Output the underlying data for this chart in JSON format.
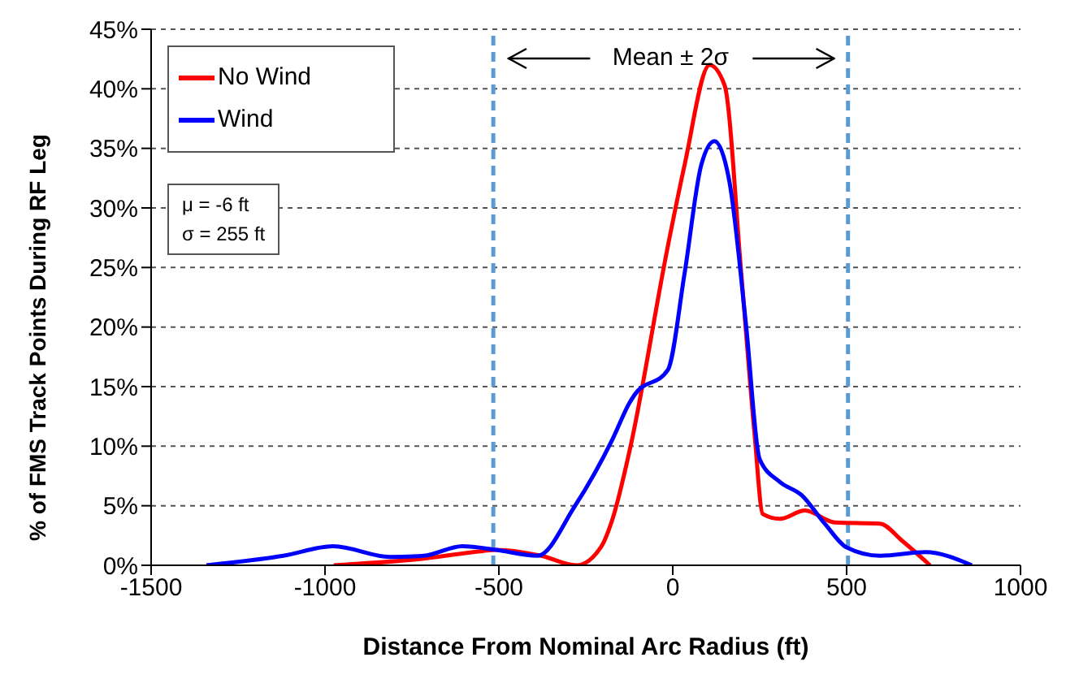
{
  "chart_data": {
    "type": "line",
    "xlabel": "Distance From Nominal Arc Radius (ft)",
    "ylabel": "% of FMS Track Points During RF Leg",
    "xlim": [
      -1500,
      1000
    ],
    "xticks": [
      -1500,
      -1000,
      -500,
      0,
      500,
      1000
    ],
    "ylim": [
      0,
      45
    ],
    "yticks": [
      {
        "value": 0,
        "label": "0%"
      },
      {
        "value": 5,
        "label": "5%"
      },
      {
        "value": 10,
        "label": "10%"
      },
      {
        "value": 15,
        "label": "15%"
      },
      {
        "value": 20,
        "label": "20%"
      },
      {
        "value": 25,
        "label": "25%"
      },
      {
        "value": 30,
        "label": "30%"
      },
      {
        "value": 35,
        "label": "35%"
      },
      {
        "value": 40,
        "label": "40%"
      },
      {
        "value": 45,
        "label": "45%"
      }
    ],
    "grid": "y",
    "legend": "top left",
    "marker": "none",
    "line_style": "solid",
    "series": [
      {
        "name": "No Wind",
        "color": "#ff0000",
        "x": [
          -975,
          -738,
          -546,
          -508,
          -378,
          -277,
          -205,
          -173,
          -125,
          -14,
          34,
          106,
          149,
          197,
          235,
          259,
          308,
          380,
          466,
          596,
          658,
          740
        ],
        "values": [
          0,
          0.5,
          1.2,
          1.3,
          0.8,
          0,
          1.6,
          3.9,
          9.5,
          26.8,
          33.6,
          42,
          40.3,
          24.5,
          11.1,
          4.3,
          3.9,
          4.6,
          3.6,
          3.5,
          2.1,
          0
        ]
      },
      {
        "name": "Wind",
        "color": "#0000ff",
        "x": [
          -1341,
          -1120,
          -976,
          -813,
          -716,
          -605,
          -508,
          -389,
          -283,
          -173,
          -125,
          -110,
          -14,
          34,
          82,
          120,
          163,
          211,
          250,
          308,
          370,
          437,
          500,
          596,
          726,
          860
        ],
        "values": [
          0,
          0.8,
          1.6,
          0.7,
          0.8,
          1.6,
          1.3,
          0.8,
          4.9,
          10.6,
          13.6,
          14.3,
          16.4,
          24.5,
          33.6,
          35.6,
          32.2,
          20.1,
          8.9,
          7,
          5.9,
          3.5,
          1.5,
          0.8,
          1.1,
          0
        ]
      }
    ],
    "ref_lines": [
      {
        "axis": "x",
        "value": -516,
        "color": "#5b9bd5",
        "line_style": "dashed"
      },
      {
        "axis": "x",
        "value": 504,
        "color": "#5b9bd5",
        "line_style": "dashed"
      }
    ],
    "annotations": [
      "Mean ± 2σ",
      "μ = -6 ft",
      "σ = 255 ft"
    ]
  }
}
